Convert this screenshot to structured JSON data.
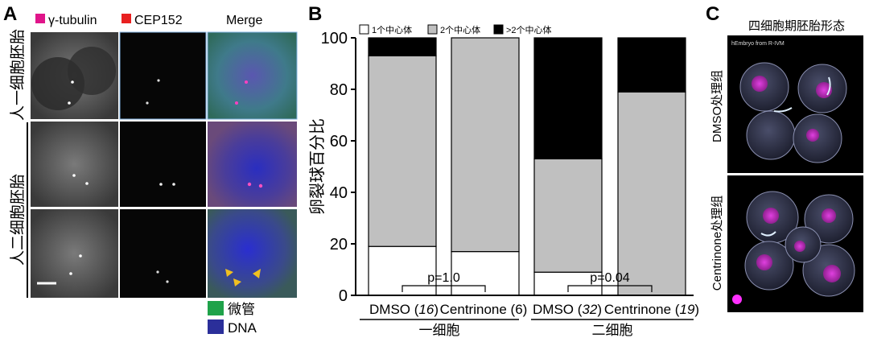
{
  "panels": {
    "a": {
      "letter": "A",
      "legend": [
        {
          "label": "γ-tubulin",
          "color": "#e0158a"
        },
        {
          "label": "CEP152",
          "color": "#e82020"
        }
      ],
      "merge_label": "Merge",
      "row_labels": [
        "人一细胞胚胎",
        "人二细胞胚胎"
      ],
      "stain_legend": [
        {
          "label": "微管",
          "color": "#1fa24a"
        },
        {
          "label": "DNA",
          "color": "#2b2f9a"
        }
      ]
    },
    "b": {
      "letter": "B"
    },
    "c": {
      "letter": "C",
      "title": "四细胞期胚胎形态",
      "watermark": "hEmbryo from R-IVM",
      "row_labels": [
        "DMSO处理组",
        "Centrinone处理组"
      ]
    }
  },
  "chart_data": {
    "type": "bar",
    "stacked": true,
    "title": "",
    "ylabel": "卵裂球百分比",
    "ylim": [
      0,
      100
    ],
    "yticks": [
      0,
      20,
      40,
      60,
      80,
      100
    ],
    "grid": false,
    "legend_position": "top",
    "categories": [
      {
        "label_prefix": "DMSO (",
        "label_n": "16",
        "label_suffix": ")",
        "n_italic": true
      },
      {
        "label_prefix": "Centrinone (",
        "label_n": "6",
        "label_suffix": ")",
        "n_italic": false
      },
      {
        "label_prefix": "DMSO (",
        "label_n": "32",
        "label_suffix": ")",
        "n_italic": true
      },
      {
        "label_prefix": "Centrinone (",
        "label_n": "19",
        "label_suffix": ")",
        "n_italic": true
      }
    ],
    "groups": [
      {
        "label": "一细胞",
        "categories": [
          0,
          1
        ]
      },
      {
        "label": "二细胞",
        "categories": [
          2,
          3
        ]
      }
    ],
    "series": [
      {
        "name": "1个中心体",
        "color": "#ffffff",
        "values": [
          19,
          17,
          9,
          0
        ]
      },
      {
        "name": "2个中心体",
        "color": "#c0c0c0",
        "values": [
          74,
          83,
          44,
          79
        ]
      },
      {
        "name": ">2个中心体",
        "color": "#000000",
        "values": [
          7,
          0,
          47,
          21
        ]
      }
    ],
    "annotations": [
      {
        "text": "p=1.0",
        "between": [
          0,
          1
        ]
      },
      {
        "text": "p=0.04",
        "between": [
          2,
          3
        ]
      }
    ]
  }
}
